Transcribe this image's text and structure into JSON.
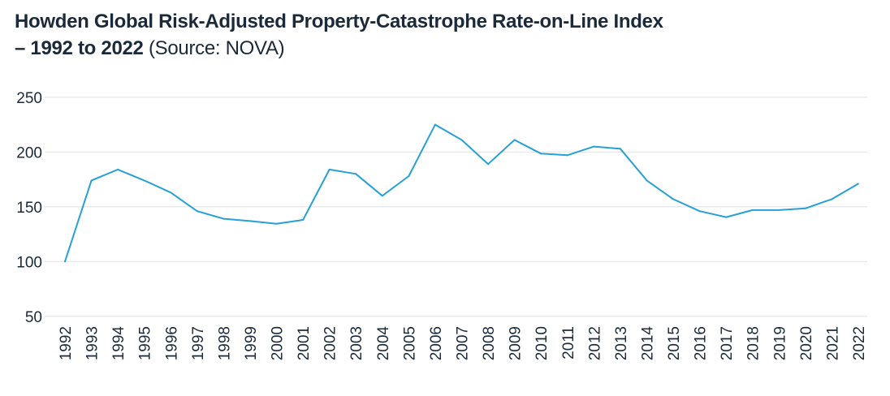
{
  "chart_data": {
    "type": "line",
    "title_line1": "Howden Global Risk-Adjusted Property-Catastrophe Rate-on-Line Index",
    "title_line2": "– 1992 to 2022",
    "source": "(Source: NOVA)",
    "xlabel": "",
    "ylabel": "",
    "ylim": [
      50,
      250
    ],
    "yticks": [
      50,
      100,
      150,
      200,
      250
    ],
    "grid": true,
    "line_color": "#27a0d8",
    "x": [
      "1992",
      "1993",
      "1994",
      "1995",
      "1996",
      "1997",
      "1998",
      "1999",
      "2000",
      "2001",
      "2002",
      "2003",
      "2004",
      "2005",
      "2006",
      "2007",
      "2008",
      "2009",
      "2010",
      "2011",
      "2012",
      "2013",
      "2014",
      "2015",
      "2016",
      "2017",
      "2018",
      "2019",
      "2020",
      "2021",
      "2022"
    ],
    "values": [
      100,
      174,
      184,
      174,
      163,
      146,
      139,
      137,
      134.5,
      138,
      184,
      180,
      160,
      178,
      225,
      211,
      189,
      211,
      198.5,
      197,
      205,
      203,
      174,
      157,
      146,
      140.5,
      147,
      147,
      148.5,
      157,
      171
    ]
  }
}
